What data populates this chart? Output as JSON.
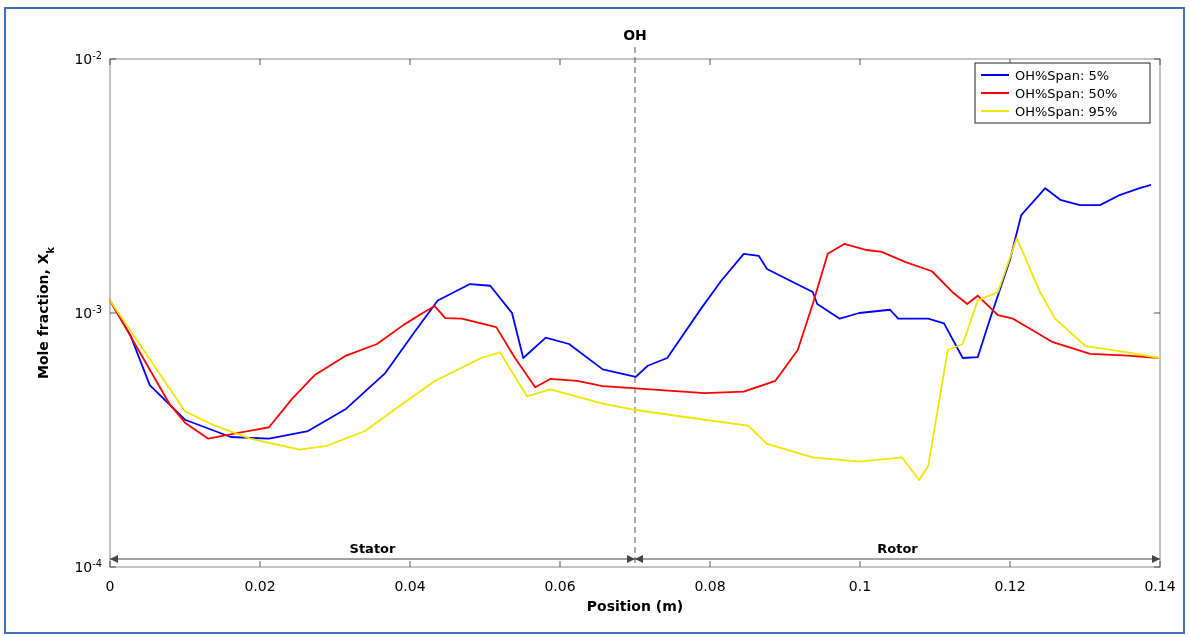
{
  "chart_data": {
    "type": "line",
    "title": "OH",
    "xlabel": "Position (m)",
    "ylabel": "Mole fraction, X$_{k}$",
    "log": "y",
    "grid": false,
    "legend": "top right",
    "line_style": "solid",
    "marker": "none",
    "xlim": [
      0,
      0.14
    ],
    "xticks": [
      0,
      0.02,
      0.04,
      0.06,
      0.08,
      0.1,
      0.12,
      0.14
    ],
    "ylim": [
      0.0001,
      0.01
    ],
    "yticks": [
      {
        "value": 0.0001,
        "label": "10$^{-4}$"
      },
      {
        "value": 0.001,
        "label": "10$^{-3}$"
      },
      {
        "value": 0.01,
        "label": "10$^{-2}$"
      }
    ],
    "ref_lines": [
      {
        "axis": "x",
        "value": 0.07,
        "line_style": "dashed"
      }
    ],
    "annotations": [
      "Stator",
      "Rotor"
    ],
    "series": [
      {
        "name": "OH%Span: 5%",
        "color": "#0000ff",
        "x": [
          0,
          0.0027,
          0.0053,
          0.01,
          0.0161,
          0.0212,
          0.0264,
          0.0315,
          0.0367,
          0.0407,
          0.0437,
          0.048,
          0.0507,
          0.0536,
          0.0551,
          0.0581,
          0.0612,
          0.0657,
          0.0701,
          0.0717,
          0.0743,
          0.0789,
          0.0815,
          0.0845,
          0.0865,
          0.0876,
          0.0907,
          0.0937,
          0.0943,
          0.0973,
          0.0999,
          0.104,
          0.1051,
          0.1091,
          0.1112,
          0.1137,
          0.1157,
          0.1173,
          0.12,
          0.1215,
          0.1247,
          0.1267,
          0.1293,
          0.132,
          0.1347,
          0.1373,
          0.1387
        ],
        "values": [
          0.00112,
          0.00082,
          0.00052,
          0.00038,
          0.000325,
          0.00032,
          0.000343,
          0.00042,
          0.00058,
          0.00085,
          0.00112,
          0.0013,
          0.00128,
          0.001,
          0.000665,
          0.0008,
          0.000755,
          0.0006,
          0.00056,
          0.00062,
          0.000665,
          0.00105,
          0.00134,
          0.00171,
          0.00168,
          0.00149,
          0.00134,
          0.00121,
          0.001085,
          0.00095,
          0.001,
          0.00103,
          0.00095,
          0.00095,
          0.00091,
          0.000665,
          0.00067,
          0.00094,
          0.00162,
          0.00243,
          0.0031,
          0.00279,
          0.00266,
          0.00266,
          0.00292,
          0.0031,
          0.00319
        ]
      },
      {
        "name": "OH%Span: 50%",
        "color": "#ff0000",
        "x": [
          0,
          0.0079,
          0.01,
          0.0131,
          0.0171,
          0.0212,
          0.0243,
          0.0273,
          0.0315,
          0.0356,
          0.0392,
          0.0417,
          0.0433,
          0.0447,
          0.0469,
          0.0515,
          0.054,
          0.0567,
          0.0587,
          0.0623,
          0.0657,
          0.0701,
          0.0793,
          0.0845,
          0.0887,
          0.0917,
          0.0937,
          0.0957,
          0.0979,
          0.1009,
          0.1029,
          0.106,
          0.1096,
          0.1123,
          0.1143,
          0.1157,
          0.1184,
          0.1204,
          0.1256,
          0.1307,
          0.1357,
          0.1399
        ],
        "values": [
          0.00112,
          0.00044,
          0.00037,
          0.00032,
          0.000337,
          0.000355,
          0.00046,
          0.00057,
          0.00068,
          0.000755,
          0.0009,
          0.001,
          0.001065,
          0.000955,
          0.00095,
          0.00088,
          0.000665,
          0.00051,
          0.00055,
          0.00054,
          0.000515,
          0.000505,
          0.000484,
          0.00049,
          0.00054,
          0.000715,
          0.001085,
          0.00171,
          0.00187,
          0.00177,
          0.00174,
          0.00159,
          0.00146,
          0.00121,
          0.001085,
          0.00117,
          0.00098,
          0.00095,
          0.00077,
          0.00069,
          0.00068,
          0.000665
        ]
      },
      {
        "name": "OH%Span: 95%",
        "color": "#f2e600",
        "x": [
          0,
          0.01,
          0.014,
          0.0187,
          0.0253,
          0.0289,
          0.034,
          0.0381,
          0.0433,
          0.0495,
          0.052,
          0.0556,
          0.0587,
          0.0657,
          0.0701,
          0.0793,
          0.0851,
          0.0876,
          0.0937,
          0.0999,
          0.1056,
          0.1079,
          0.1091,
          0.1117,
          0.1137,
          0.1157,
          0.1184,
          0.1209,
          0.124,
          0.126,
          0.1301,
          0.1357,
          0.1399
        ],
        "values": [
          0.00112,
          0.00041,
          0.00036,
          0.00032,
          0.00029,
          0.0003,
          0.000343,
          0.00042,
          0.00054,
          0.000665,
          0.0007,
          0.00047,
          0.0005,
          0.00044,
          0.000415,
          0.00038,
          0.00036,
          0.000305,
          0.00027,
          0.00026,
          0.00027,
          0.00022,
          0.00025,
          0.000715,
          0.000755,
          0.00112,
          0.00121,
          0.00197,
          0.00121,
          0.00095,
          0.00074,
          0.0007,
          0.000665
        ]
      }
    ]
  }
}
